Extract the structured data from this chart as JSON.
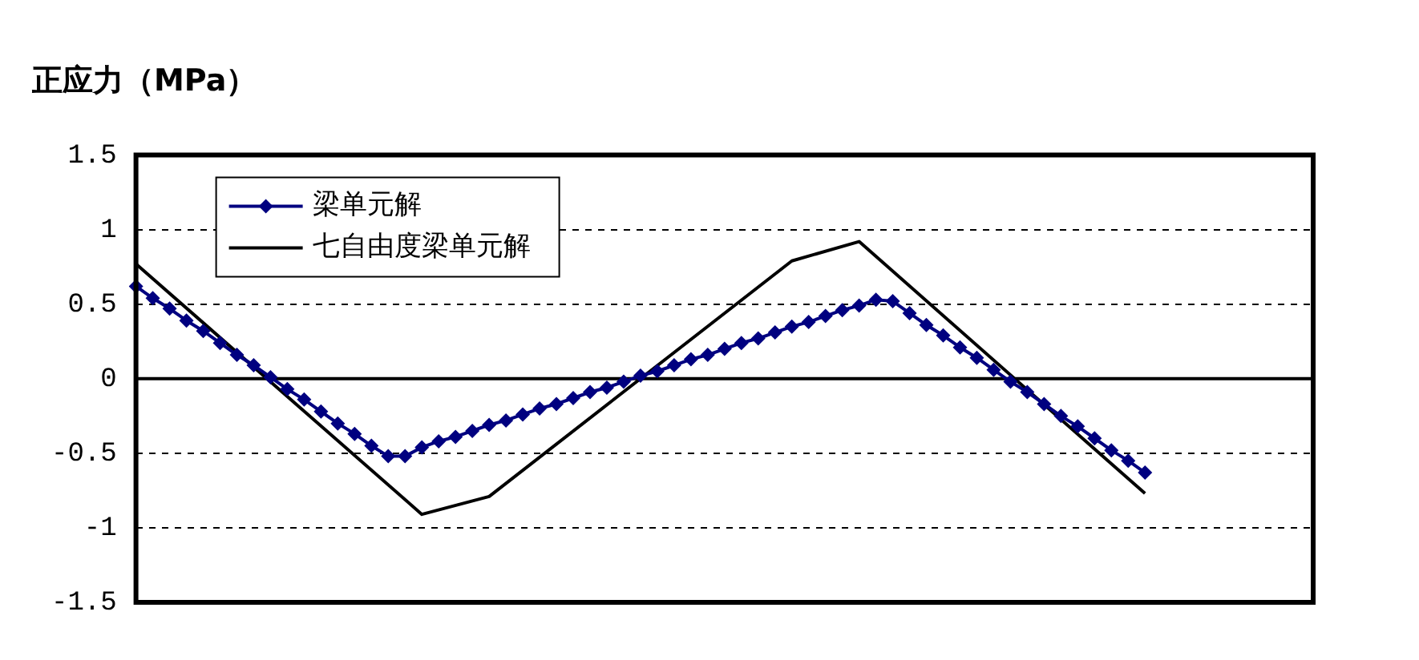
{
  "chart_data": {
    "type": "line",
    "title": "正应力（MPa）",
    "categories": [
      null,
      null,
      null,
      null,
      null,
      null,
      null,
      null,
      null,
      null,
      null,
      null,
      null,
      null,
      null,
      null,
      null,
      null,
      null,
      null,
      null,
      null,
      null,
      null,
      null,
      null,
      null,
      null,
      null,
      null,
      null,
      null,
      null,
      null,
      null,
      null,
      null,
      null,
      null,
      null,
      null,
      null,
      null,
      null,
      null,
      null,
      null,
      null,
      null,
      null,
      null,
      null,
      null,
      null,
      null,
      null,
      null,
      null,
      null,
      null,
      null,
      null,
      null,
      null,
      null,
      null,
      null,
      null,
      null,
      null,
      null
    ],
    "series": [
      {
        "name": "梁单元解",
        "color": "#000080",
        "marker": "diamond",
        "values": [
          0.62,
          0.54,
          0.47,
          0.39,
          0.32,
          0.24,
          0.16,
          0.09,
          0.01,
          -0.07,
          -0.14,
          -0.22,
          -0.3,
          -0.37,
          -0.45,
          -0.52,
          -0.52,
          -0.46,
          -0.42,
          -0.39,
          -0.35,
          -0.31,
          -0.28,
          -0.24,
          -0.2,
          -0.17,
          -0.13,
          -0.09,
          -0.06,
          -0.02,
          0.02,
          0.05,
          0.09,
          0.13,
          0.16,
          0.2,
          0.24,
          0.27,
          0.31,
          0.35,
          0.38,
          0.42,
          0.46,
          0.49,
          0.53,
          0.52,
          0.44,
          0.36,
          0.29,
          0.21,
          0.14,
          0.06,
          -0.02,
          -0.09,
          -0.17,
          -0.25,
          -0.32,
          -0.4,
          -0.48,
          -0.55,
          -0.63,
          null,
          null,
          null,
          null,
          null,
          null,
          null,
          null,
          null,
          null
        ]
      },
      {
        "name": "七自由度梁单元解",
        "color": "#000000",
        "marker": "none",
        "values": [
          0.77,
          null,
          null,
          null,
          null,
          null,
          null,
          null,
          null,
          null,
          null,
          null,
          null,
          null,
          null,
          null,
          null,
          -0.91,
          null,
          null,
          null,
          -0.79,
          null,
          null,
          null,
          null,
          null,
          null,
          null,
          null,
          null,
          null,
          null,
          null,
          null,
          null,
          null,
          null,
          null,
          0.79,
          null,
          null,
          null,
          0.92,
          null,
          null,
          null,
          null,
          null,
          null,
          null,
          null,
          null,
          null,
          null,
          null,
          null,
          null,
          null,
          null,
          -0.77,
          null,
          null,
          null,
          null,
          null,
          null,
          null,
          null,
          null,
          null
        ]
      }
    ],
    "ylim": [
      -1.5,
      1.5
    ],
    "yticks": [
      -1.5,
      -1,
      -0.5,
      0,
      0.5,
      1,
      1.5
    ],
    "grid": "y",
    "legend": "top left",
    "ref_lines": [
      {
        "axis": "y",
        "value": 0,
        "color": "#000000",
        "line_style": "solid"
      }
    ]
  }
}
